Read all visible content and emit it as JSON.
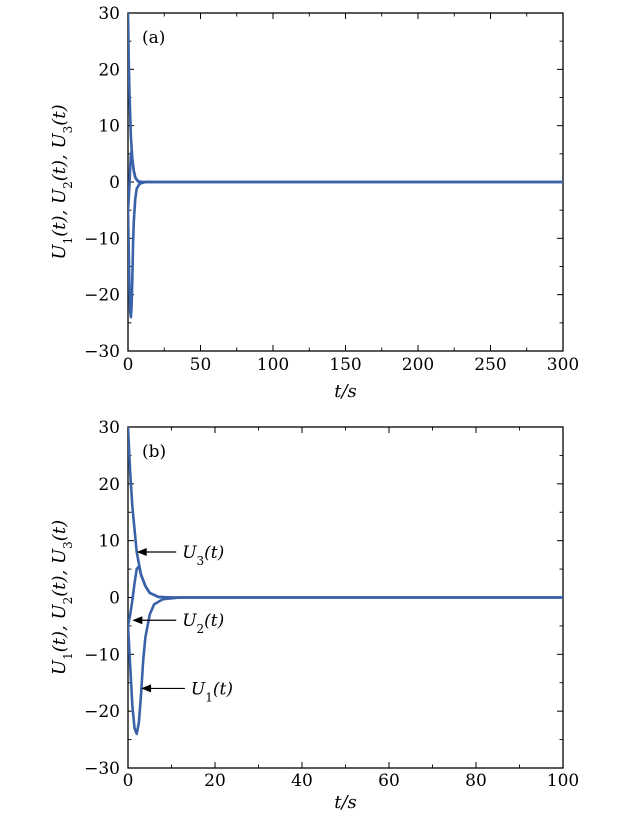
{
  "chart_data": [
    {
      "type": "line",
      "panel_label": "(a)",
      "xlabel": "t/s",
      "ylabel": "U1(t), U2(t), U3(t)",
      "xlim": [
        0,
        300
      ],
      "ylim": [
        -30,
        30
      ],
      "x_ticks": [
        "0",
        "50",
        "100",
        "150",
        "200",
        "250",
        "300"
      ],
      "y_ticks": [
        "−30",
        "−20",
        "−10",
        "0",
        "10",
        "20",
        "30"
      ],
      "grid": false,
      "series": [
        {
          "points": [
            [
              0,
              -5
            ],
            [
              0.5,
              -12
            ],
            [
              1,
              -19
            ],
            [
              1.5,
              -23
            ],
            [
              2,
              -24
            ],
            [
              2.5,
              -22
            ],
            [
              3,
              -17
            ],
            [
              3.5,
              -11
            ],
            [
              4,
              -7
            ],
            [
              5,
              -3
            ],
            [
              6,
              -1.2
            ],
            [
              8,
              -0.3
            ],
            [
              12,
              0
            ],
            [
              300,
              0
            ]
          ]
        },
        {
          "points": [
            [
              0,
              -5
            ],
            [
              0.5,
              -3
            ],
            [
              1,
              -0.5
            ],
            [
              1.5,
              2.5
            ],
            [
              2,
              5
            ],
            [
              2.5,
              5.5
            ],
            [
              3,
              4
            ],
            [
              4,
              2
            ],
            [
              5,
              0.8
            ],
            [
              7,
              0.1
            ],
            [
              10,
              0
            ],
            [
              300,
              0
            ]
          ]
        },
        {
          "points": [
            [
              0,
              30
            ],
            [
              0.5,
              22
            ],
            [
              1,
              16
            ],
            [
              1.5,
              12
            ],
            [
              2,
              8
            ],
            [
              3,
              4
            ],
            [
              4,
              2
            ],
            [
              5,
              0.8
            ],
            [
              7,
              0.1
            ],
            [
              10,
              0
            ],
            [
              300,
              0
            ]
          ]
        }
      ],
      "color": "#3a62a8"
    },
    {
      "type": "line",
      "panel_label": "(b)",
      "xlabel": "t/s",
      "ylabel": "U1(t), U2(t), U3(t)",
      "xlim": [
        0,
        100
      ],
      "ylim": [
        -30,
        30
      ],
      "x_ticks": [
        "0",
        "20",
        "40",
        "60",
        "80",
        "100"
      ],
      "y_ticks": [
        "−30",
        "−20",
        "−10",
        "0",
        "10",
        "20",
        "30"
      ],
      "grid": false,
      "series": [
        {
          "name": "U1(t)",
          "points": [
            [
              0,
              -5
            ],
            [
              0.5,
              -12
            ],
            [
              1,
              -19
            ],
            [
              1.5,
              -23
            ],
            [
              2,
              -24
            ],
            [
              2.5,
              -22
            ],
            [
              3,
              -17
            ],
            [
              3.5,
              -11
            ],
            [
              4,
              -7
            ],
            [
              5,
              -3
            ],
            [
              6,
              -1.2
            ],
            [
              8,
              -0.3
            ],
            [
              12,
              0
            ],
            [
              100,
              0
            ]
          ]
        },
        {
          "name": "U2(t)",
          "points": [
            [
              0,
              -5
            ],
            [
              0.5,
              -3
            ],
            [
              1,
              -0.5
            ],
            [
              1.5,
              2.5
            ],
            [
              2,
              5
            ],
            [
              2.5,
              5.5
            ],
            [
              3,
              4
            ],
            [
              4,
              2
            ],
            [
              5,
              0.8
            ],
            [
              7,
              0.1
            ],
            [
              10,
              0
            ],
            [
              100,
              0
            ]
          ]
        },
        {
          "name": "U3(t)",
          "points": [
            [
              0,
              30
            ],
            [
              0.5,
              22
            ],
            [
              1,
              16
            ],
            [
              1.5,
              12
            ],
            [
              2,
              8
            ],
            [
              3,
              4
            ],
            [
              4,
              2
            ],
            [
              5,
              0.8
            ],
            [
              7,
              0.1
            ],
            [
              10,
              0
            ],
            [
              100,
              0
            ]
          ]
        }
      ],
      "annotations": [
        {
          "text": "U3(t)",
          "target": [
            2,
            8
          ],
          "text_at": [
            12,
            8
          ]
        },
        {
          "text": "U2(t)",
          "target": [
            1,
            -4
          ],
          "text_at": [
            12,
            -4
          ]
        },
        {
          "text": "U1(t)",
          "target": [
            3,
            -16
          ],
          "text_at": [
            14,
            -16
          ]
        }
      ],
      "color": "#3a62a8"
    }
  ]
}
